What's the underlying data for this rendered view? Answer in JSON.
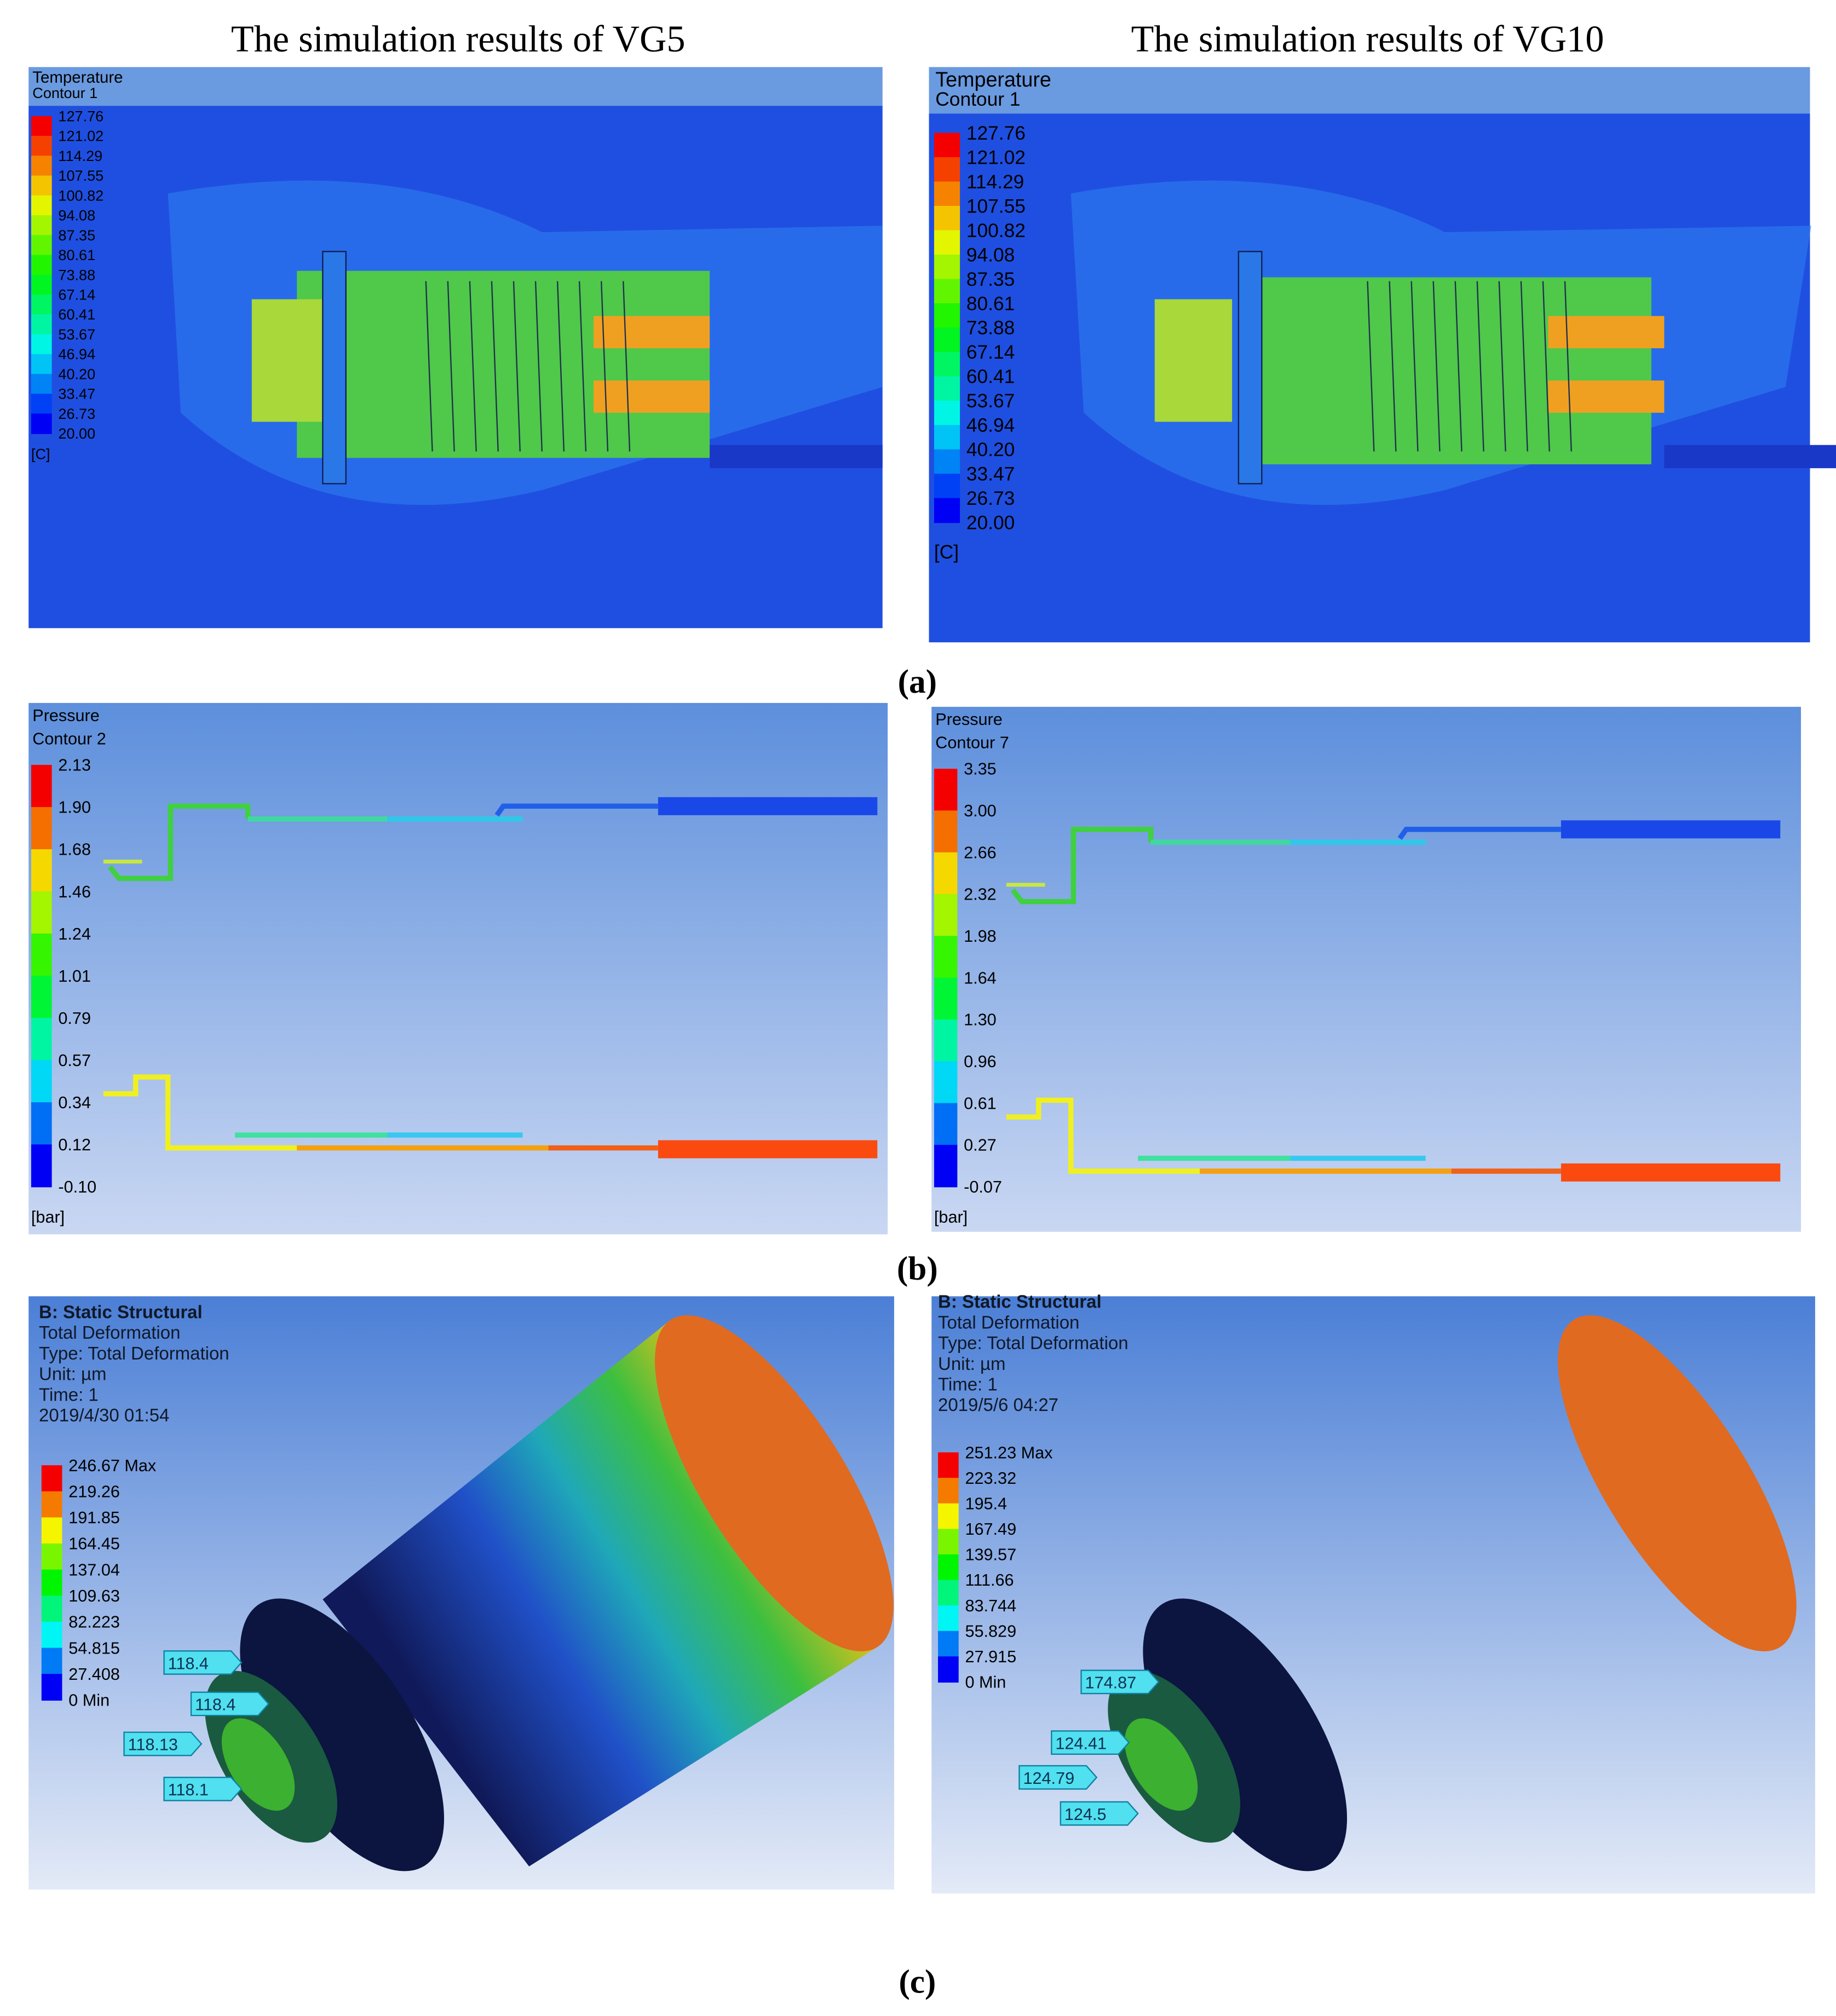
{
  "headers": [
    "The simulation results of VG5",
    "The simulation results of VG10"
  ],
  "panel_labels": [
    "(a)",
    "(b)",
    "(c)"
  ],
  "temperature": [
    {
      "title": "Temperature",
      "subtitle": "Contour 1",
      "levels": [
        "127.76",
        "121.02",
        "114.29",
        "107.55",
        "100.82",
        "94.08",
        "87.35",
        "80.61",
        "73.88",
        "67.14",
        "60.41",
        "53.67",
        "46.94",
        "40.20",
        "33.47",
        "26.73",
        "20.00"
      ],
      "unit": "[C]"
    },
    {
      "title": "Temperature",
      "subtitle": "Contour 1",
      "levels": [
        "127.76",
        "121.02",
        "114.29",
        "107.55",
        "100.82",
        "94.08",
        "87.35",
        "80.61",
        "73.88",
        "67.14",
        "60.41",
        "53.67",
        "46.94",
        "40.20",
        "33.47",
        "26.73",
        "20.00"
      ],
      "unit": "[C]"
    }
  ],
  "pressure": [
    {
      "title": "Pressure",
      "subtitle": "Contour 2",
      "levels": [
        "2.13",
        "1.90",
        "1.68",
        "1.46",
        "1.24",
        "1.01",
        "0.79",
        "0.57",
        "0.34",
        "0.12",
        "-0.10"
      ],
      "unit": "[bar]"
    },
    {
      "title": "Pressure",
      "subtitle": "Contour 7",
      "levels": [
        "3.35",
        "3.00",
        "2.66",
        "2.32",
        "1.98",
        "1.64",
        "1.30",
        "0.96",
        "0.61",
        "0.27",
        "-0.07"
      ],
      "unit": "[bar]"
    }
  ],
  "deformation": [
    {
      "title": "B: Static Structural",
      "lines": [
        "Total Deformation",
        "Type: Total Deformation",
        "Unit: µm",
        "Time: 1",
        "2019/4/30 01:54"
      ],
      "levels": [
        "246.67 Max",
        "219.26",
        "191.85",
        "164.45",
        "137.04",
        "109.63",
        "82.223",
        "54.815",
        "27.408",
        "0 Min"
      ],
      "probes": [
        "118.4",
        "118.4",
        "118.13",
        "118.1"
      ]
    },
    {
      "title": "B: Static Structural",
      "lines": [
        "Total Deformation",
        "Type: Total Deformation",
        "Unit: µm",
        "Time: 1",
        "2019/5/6 04:27"
      ],
      "levels": [
        "251.23 Max",
        "223.32",
        "195.4",
        "167.49",
        "139.57",
        "111.66",
        "83.744",
        "55.829",
        "27.915",
        "0 Min"
      ],
      "probes": [
        "174.87",
        "124.41",
        "124.79",
        "124.5"
      ]
    }
  ]
}
